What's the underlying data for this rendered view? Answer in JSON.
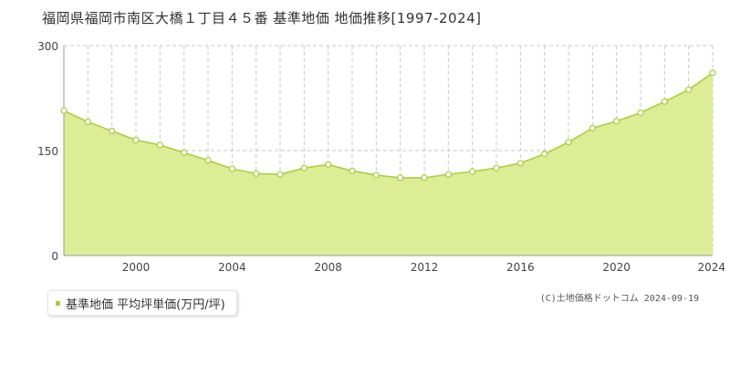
{
  "title": "福岡県福岡市南区大橋１丁目４５番 基準地価 地価推移[1997-2024]",
  "copyright": "(C)土地価格ドットコム 2024-09-19",
  "colors": {
    "fill": "#dced95",
    "line": "#a9cc3a",
    "point_fill": "#ffffff",
    "grid": "#c8c8c8",
    "axis": "#999999"
  },
  "chart_data": {
    "type": "area",
    "title": "福岡県福岡市南区大橋１丁目４５番 基準地価 地価推移[1997-2024]",
    "xlabel": "",
    "ylabel": "",
    "xlim": [
      1997,
      2024
    ],
    "ylim": [
      0,
      300
    ],
    "x_ticks": [
      2000,
      2004,
      2008,
      2012,
      2016,
      2020,
      2024
    ],
    "y_ticks": [
      0,
      150,
      300
    ],
    "grid": true,
    "legend_position": "bottom-left",
    "series": [
      {
        "name": "基準地価 平均坪単価(万円/坪)",
        "x": [
          1997,
          1998,
          1999,
          2000,
          2001,
          2002,
          2003,
          2004,
          2005,
          2006,
          2007,
          2008,
          2009,
          2010,
          2011,
          2012,
          2013,
          2014,
          2015,
          2016,
          2017,
          2018,
          2019,
          2020,
          2021,
          2022,
          2023,
          2024
        ],
        "values": [
          207,
          191,
          178,
          165,
          158,
          147,
          136,
          124,
          117,
          116,
          125,
          130,
          121,
          115,
          111,
          111,
          116,
          120,
          125,
          132,
          145,
          162,
          182,
          192,
          204,
          220,
          237,
          261
        ]
      }
    ]
  }
}
